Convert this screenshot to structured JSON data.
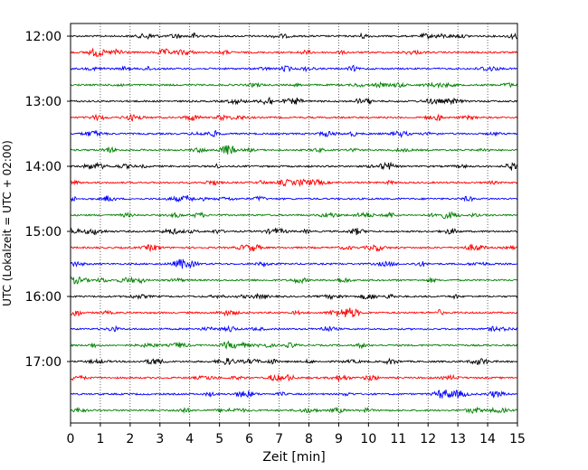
{
  "chart_data": {
    "type": "line",
    "title": "",
    "xlabel": "Zeit  [min]",
    "ylabel": "UTC (Lokalzeit = UTC + 02:00)",
    "xlim": [
      0,
      15
    ],
    "x_ticks": [
      "0",
      "1",
      "2",
      "3",
      "4",
      "5",
      "6",
      "7",
      "8",
      "9",
      "10",
      "11",
      "12",
      "13",
      "14",
      "15"
    ],
    "y_tick_labels": [
      "12:00",
      "13:00",
      "14:00",
      "15:00",
      "16:00",
      "17:00"
    ],
    "traces_per_hour": 4,
    "trace_count": 24,
    "trace_minutes": 15,
    "first_trace_start": "12:00",
    "last_trace_start": "17:45",
    "grid": "vertical dotted lines at each minute",
    "legend": "none",
    "trace_colors": [
      "#000000",
      "#ff0000",
      "#0000ff",
      "#008000"
    ]
  }
}
